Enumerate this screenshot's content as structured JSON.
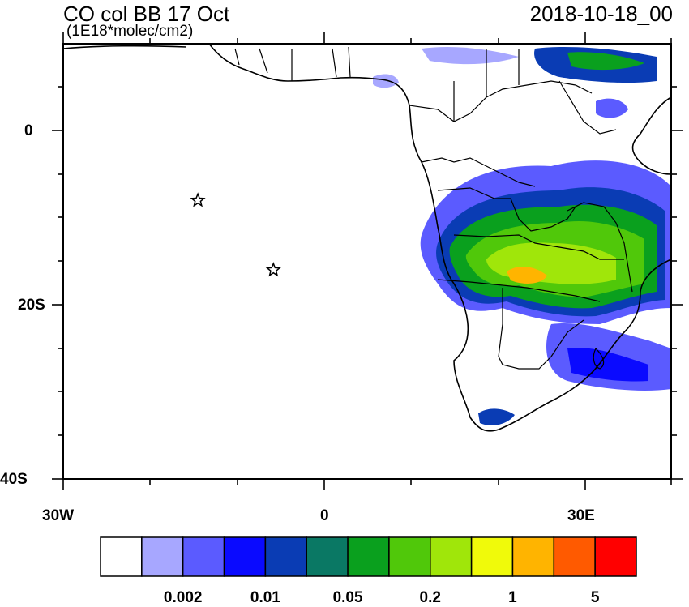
{
  "title": "CO col BB 17 Oct",
  "units": "(1E18*molec/cm2)",
  "datetime": "2018-10-18_00",
  "lat_labels": [
    "0",
    "20S",
    "40S"
  ],
  "lon_labels": [
    "30W",
    "0",
    "30E"
  ],
  "colorbar": {
    "colors": [
      "#ffffff",
      "#a7a7ff",
      "#5b5bff",
      "#0a0aff",
      "#0a3cb4",
      "#0a7864",
      "#0aa01e",
      "#50c80a",
      "#a0e60a",
      "#f0fa0a",
      "#ffb400",
      "#ff5a00",
      "#ff0000"
    ],
    "labels": [
      "0.002",
      "0.01",
      "0.05",
      "0.2",
      "1",
      "5"
    ]
  },
  "markers": [
    {
      "name": "star-marker",
      "lon": -14.5,
      "lat": -8
    },
    {
      "name": "star-marker",
      "lon": -5.8,
      "lat": -16
    }
  ]
}
